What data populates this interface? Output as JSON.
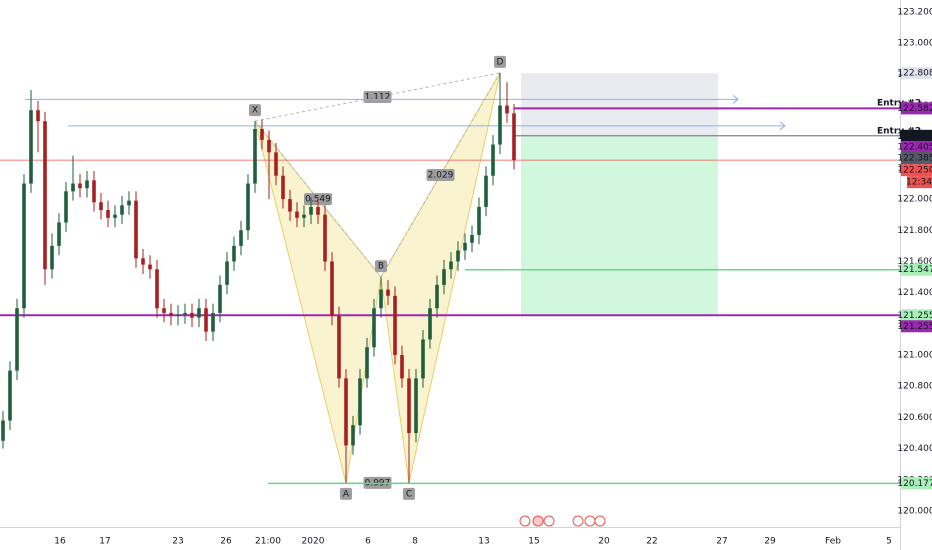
{
  "chart_data": {
    "type": "candlestick",
    "up_color": "#1f5f3c",
    "down_color": "#a81f1f",
    "ylim": [
      119.897,
      123.277
    ],
    "yticks": [
      {
        "value": 123.2,
        "label": "123.200"
      },
      {
        "value": 123.0,
        "label": "123.000"
      },
      {
        "value": 122.8,
        "label": "122.800"
      },
      {
        "value": 122.6,
        "label": "122.600"
      },
      {
        "value": 122.4,
        "label": "122.400"
      },
      {
        "value": 122.2,
        "label": "122.200"
      },
      {
        "value": 122.0,
        "label": "122.000"
      },
      {
        "value": 121.8,
        "label": "121.800"
      },
      {
        "value": 121.6,
        "label": "121.600"
      },
      {
        "value": 121.4,
        "label": "121.400"
      },
      {
        "value": 121.2,
        "label": "121.200"
      },
      {
        "value": 121.0,
        "label": "121.000"
      },
      {
        "value": 120.8,
        "label": "120.800"
      },
      {
        "value": 120.6,
        "label": "120.600"
      },
      {
        "value": 120.4,
        "label": "120.400"
      },
      {
        "value": 120.2,
        "label": "120.200"
      },
      {
        "value": 120.0,
        "label": "120.000"
      }
    ],
    "categories": [
      "16",
      "17",
      "23",
      "26",
      "21:00",
      "2020",
      "6",
      "8",
      "13",
      "15",
      "20",
      "22",
      "27",
      "29",
      "Feb",
      "5"
    ],
    "candles": [
      [
        120.45,
        120.64,
        120.4,
        120.58
      ],
      [
        120.58,
        120.96,
        120.52,
        120.9
      ],
      [
        120.9,
        121.36,
        120.84,
        121.3
      ],
      [
        121.3,
        122.16,
        121.24,
        122.1
      ],
      [
        122.1,
        122.7,
        122.04,
        122.57
      ],
      [
        122.57,
        122.63,
        122.3,
        122.5
      ],
      [
        122.5,
        122.56,
        121.45,
        121.55
      ],
      [
        121.55,
        121.78,
        121.49,
        121.7
      ],
      [
        121.7,
        121.91,
        121.64,
        121.85
      ],
      [
        121.85,
        122.11,
        121.79,
        122.05
      ],
      [
        122.05,
        122.28,
        121.99,
        122.1
      ],
      [
        122.1,
        122.16,
        122.01,
        122.07
      ],
      [
        122.07,
        122.18,
        122.01,
        122.12
      ],
      [
        122.12,
        122.18,
        121.92,
        121.98
      ],
      [
        121.98,
        122.04,
        121.87,
        121.93
      ],
      [
        121.93,
        121.99,
        121.82,
        121.88
      ],
      [
        121.88,
        121.96,
        121.82,
        121.9
      ],
      [
        121.9,
        122.02,
        121.84,
        121.96
      ],
      [
        121.96,
        122.05,
        121.9,
        121.99
      ],
      [
        121.99,
        122.05,
        121.56,
        121.62
      ],
      [
        121.62,
        121.68,
        121.52,
        121.58
      ],
      [
        121.58,
        121.64,
        121.49,
        121.55
      ],
      [
        121.55,
        121.61,
        121.24,
        121.3
      ],
      [
        121.3,
        121.36,
        121.21,
        121.27
      ],
      [
        121.27,
        121.33,
        121.19,
        121.25
      ],
      [
        121.25,
        121.32,
        121.19,
        121.26
      ],
      [
        121.26,
        121.33,
        121.2,
        121.27
      ],
      [
        121.27,
        121.33,
        121.18,
        121.24
      ],
      [
        121.24,
        121.36,
        121.18,
        121.3
      ],
      [
        121.3,
        121.36,
        121.09,
        121.15
      ],
      [
        121.15,
        121.33,
        121.09,
        121.27
      ],
      [
        121.27,
        121.51,
        121.21,
        121.45
      ],
      [
        121.45,
        121.66,
        121.39,
        121.6
      ],
      [
        121.6,
        121.76,
        121.54,
        121.7
      ],
      [
        121.7,
        121.86,
        121.64,
        121.8
      ],
      [
        121.8,
        122.16,
        121.74,
        122.1
      ],
      [
        122.1,
        122.5,
        122.04,
        122.45
      ],
      [
        122.45,
        122.51,
        122.32,
        122.38
      ],
      [
        122.38,
        122.44,
        122.0,
        122.3
      ],
      [
        122.3,
        122.36,
        122.09,
        122.15
      ],
      [
        122.15,
        122.21,
        121.94,
        122.0
      ],
      [
        122.0,
        122.06,
        121.86,
        121.92
      ],
      [
        121.92,
        121.98,
        121.82,
        121.88
      ],
      [
        121.88,
        121.96,
        121.82,
        121.9
      ],
      [
        121.9,
        122.01,
        121.84,
        121.95
      ],
      [
        121.95,
        122.01,
        121.84,
        121.9
      ],
      [
        121.9,
        121.96,
        121.54,
        121.6
      ],
      [
        121.6,
        121.66,
        121.19,
        121.25
      ],
      [
        121.25,
        121.31,
        120.79,
        120.85
      ],
      [
        120.85,
        120.91,
        120.18,
        120.42
      ],
      [
        120.42,
        120.61,
        120.36,
        120.55
      ],
      [
        120.55,
        120.91,
        120.49,
        120.85
      ],
      [
        120.85,
        121.11,
        120.79,
        121.05
      ],
      [
        121.05,
        121.36,
        120.99,
        121.3
      ],
      [
        121.3,
        121.5,
        121.24,
        121.42
      ],
      [
        121.42,
        121.48,
        121.32,
        121.38
      ],
      [
        121.38,
        121.44,
        120.94,
        121.0
      ],
      [
        121.0,
        121.06,
        120.79,
        120.85
      ],
      [
        120.85,
        120.91,
        120.18,
        120.5
      ],
      [
        120.5,
        120.91,
        120.44,
        120.85
      ],
      [
        120.85,
        121.16,
        120.79,
        121.1
      ],
      [
        121.1,
        121.36,
        121.04,
        121.3
      ],
      [
        121.3,
        121.51,
        121.24,
        121.45
      ],
      [
        121.45,
        121.61,
        121.39,
        121.55
      ],
      [
        121.55,
        121.66,
        121.49,
        121.6
      ],
      [
        121.6,
        121.73,
        121.54,
        121.67
      ],
      [
        121.67,
        121.78,
        121.61,
        121.72
      ],
      [
        121.72,
        121.83,
        121.66,
        121.77
      ],
      [
        121.77,
        122.01,
        121.71,
        121.95
      ],
      [
        121.95,
        122.21,
        121.89,
        122.15
      ],
      [
        122.15,
        122.41,
        122.09,
        122.35
      ],
      [
        122.35,
        122.81,
        122.29,
        122.6
      ],
      [
        122.6,
        122.75,
        122.49,
        122.55
      ],
      [
        122.55,
        122.61,
        122.19,
        122.25
      ]
    ],
    "pattern": {
      "points": [
        {
          "label": "X",
          "x": 36,
          "price": 122.5
        },
        {
          "label": "A",
          "x": 49,
          "price": 120.18
        },
        {
          "label": "B",
          "x": 54,
          "price": 121.5
        },
        {
          "label": "C",
          "x": 58,
          "price": 120.18
        },
        {
          "label": "D",
          "x": 71,
          "price": 122.81
        }
      ],
      "ratios": [
        1.112,
        0.549,
        2.029,
        0.997
      ]
    },
    "levels": [
      {
        "price": 122.64,
        "color": "#8fb0e8"
      },
      {
        "price": 122.47,
        "color": "#8fb0e8"
      },
      {
        "price": 122.25,
        "color": "#ef5350"
      },
      {
        "price": 122.582,
        "color": "#9c27b0"
      },
      {
        "price": 122.406,
        "color": "#131722"
      },
      {
        "price": 122.405,
        "color": "#9e9e9e"
      },
      {
        "price": 121.547,
        "color": "#66d985"
      },
      {
        "price": 121.255,
        "color": "#9c27b0"
      },
      {
        "price": 120.177,
        "color": "#66d985"
      }
    ],
    "position": {
      "stop": 122.808,
      "entry": 122.406,
      "target": 121.255
    },
    "entries": [
      "Entry #2",
      "Entry #2"
    ],
    "price_tags": [
      {
        "price": 122.808,
        "bg": "#e0e3eb",
        "fg": "#131722"
      },
      {
        "price": 122.582,
        "bg": "#9c27b0",
        "fg": "#ffffff"
      },
      {
        "price": 122.406,
        "bg": "#131722",
        "fg": "#ffffff"
      },
      {
        "price": 122.405,
        "bg": "#9c27b0",
        "fg": "#ffffff"
      },
      {
        "price": 122.385,
        "bg": "#555a66",
        "fg": "#ffffff"
      },
      {
        "price": 122.25,
        "label": "122.250",
        "bg": "#ef5350",
        "fg": "#ffffff"
      },
      {
        "price": 121.547,
        "bg": "#a8f0b8",
        "fg": "#131722"
      },
      {
        "price": 121.255,
        "bg": "#a8f0b8",
        "fg": "#131722"
      },
      {
        "price": 121.255,
        "bg": "#9c27b0",
        "fg": "#ffffff"
      },
      {
        "price": 120.177,
        "bg": "#a8f0b8",
        "fg": "#131722"
      }
    ],
    "countdown": "12:34"
  }
}
